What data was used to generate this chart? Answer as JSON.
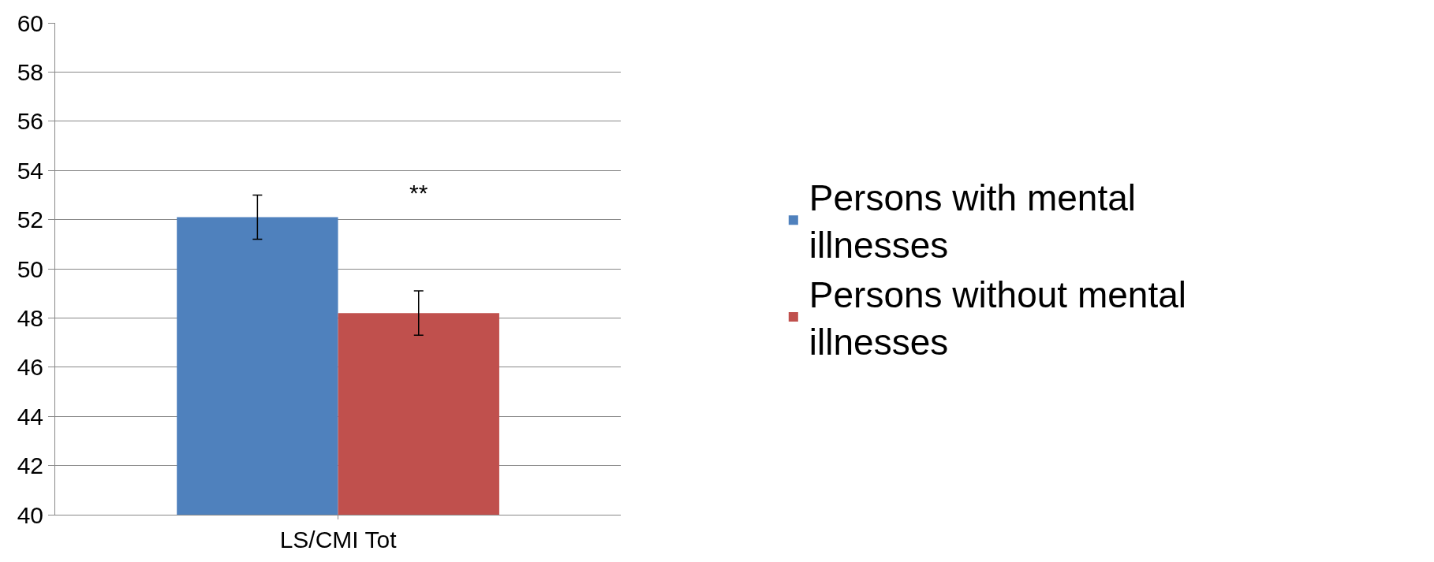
{
  "chart_data": {
    "type": "bar",
    "categories": [
      "LS/CMI Tot"
    ],
    "series": [
      {
        "name": "Persons with mental illnesses",
        "color": "#4f81bd",
        "values": [
          52.1
        ],
        "errors": [
          0.9
        ]
      },
      {
        "name": "Persons without mental illnesses",
        "color": "#c0504d",
        "values": [
          48.2
        ],
        "errors": [
          0.9
        ]
      }
    ],
    "ylim": [
      40,
      60
    ],
    "yticks": [
      40,
      42,
      44,
      46,
      48,
      50,
      52,
      54,
      56,
      58,
      60
    ],
    "grid": "y",
    "legend": "right",
    "annotations": [
      "**"
    ]
  }
}
